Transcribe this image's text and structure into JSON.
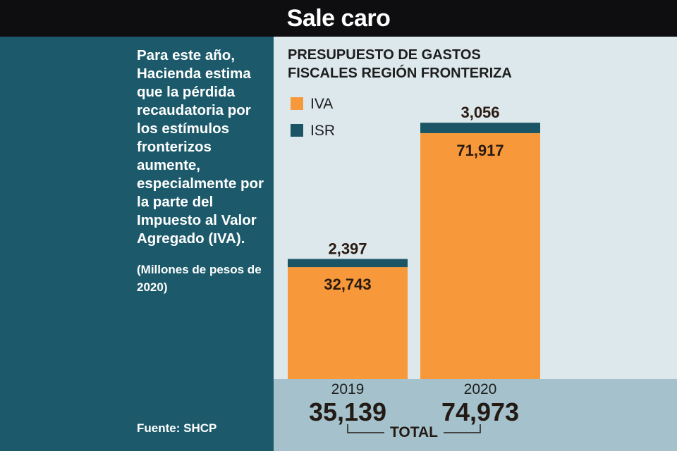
{
  "header": {
    "title": "Sale caro"
  },
  "sidebar": {
    "description": "Para este año, Hacienda estima que la pérdida recaudatoria por los estímulos fronterizos aumente, especialmente por la parte del Impuesto al Valor Agregado (IVA).",
    "units": "(Millones de pesos de 2020)",
    "source": "Fuente: SHCP"
  },
  "colors": {
    "iva": "#f7993a",
    "isr": "#1b5565",
    "sidebar_bg": "#1c5a6b",
    "header_bg": "#0e0e10",
    "footer_band": "#a4c1cc"
  },
  "chart_data": {
    "type": "bar",
    "stacked": true,
    "title_lines": [
      "PRESUPUESTO DE GASTOS",
      "FISCALES REGIÓN FRONTERIZA"
    ],
    "categories": [
      "2019",
      "2020"
    ],
    "series": [
      {
        "name": "IVA",
        "values": [
          32743,
          71917
        ],
        "labels": [
          "32,743",
          "71,917"
        ]
      },
      {
        "name": "ISR",
        "values": [
          2397,
          3056
        ],
        "labels": [
          "2,397",
          "3,056"
        ]
      }
    ],
    "totals": [
      35139,
      74973
    ],
    "total_labels": [
      "35,139",
      "74,973"
    ],
    "total_caption": "TOTAL",
    "ylim": [
      0,
      75000
    ],
    "grid": false,
    "legend": "top-left"
  }
}
